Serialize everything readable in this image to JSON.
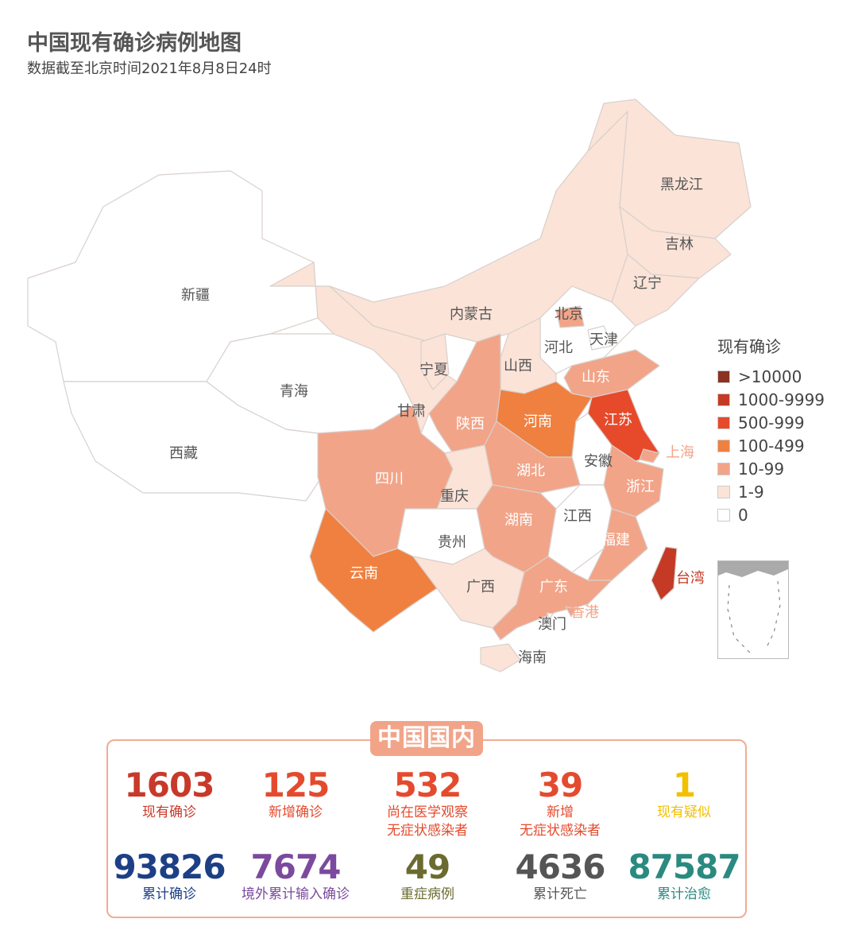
{
  "header": {
    "title": "中国现有确诊病例地图",
    "subtitle": "数据截至北京时间2021年8月8日24时"
  },
  "legend": {
    "title": "现有确诊",
    "levels": [
      {
        "label": ">10000",
        "color": "#8b3222"
      },
      {
        "label": "1000-9999",
        "color": "#c43a25"
      },
      {
        "label": "500-999",
        "color": "#e64a2b"
      },
      {
        "label": "100-499",
        "color": "#f08040"
      },
      {
        "label": "10-99",
        "color": "#f2a488"
      },
      {
        "label": "1-9",
        "color": "#fbe3d8"
      },
      {
        "label": "0",
        "color": "#ffffff"
      }
    ]
  },
  "provinces": [
    {
      "name": "新疆",
      "level": "0"
    },
    {
      "name": "西藏",
      "level": "0"
    },
    {
      "name": "青海",
      "level": "0"
    },
    {
      "name": "甘肃",
      "level": "1-9"
    },
    {
      "name": "内蒙古",
      "level": "1-9"
    },
    {
      "name": "黑龙江",
      "level": "1-9"
    },
    {
      "name": "吉林",
      "level": "1-9"
    },
    {
      "name": "辽宁",
      "level": "1-9"
    },
    {
      "name": "河北",
      "level": "0"
    },
    {
      "name": "北京",
      "level": "10-99"
    },
    {
      "name": "天津",
      "level": "0"
    },
    {
      "name": "山西",
      "level": "1-9"
    },
    {
      "name": "山东",
      "level": "10-99"
    },
    {
      "name": "宁夏",
      "level": "1-9"
    },
    {
      "name": "陕西",
      "level": "10-99"
    },
    {
      "name": "河南",
      "level": "100-499"
    },
    {
      "name": "江苏",
      "level": "500-999"
    },
    {
      "name": "上海",
      "level": "10-99"
    },
    {
      "name": "安徽",
      "level": "0"
    },
    {
      "name": "湖北",
      "level": "10-99"
    },
    {
      "name": "四川",
      "level": "10-99"
    },
    {
      "name": "重庆",
      "level": "1-9"
    },
    {
      "name": "浙江",
      "level": "10-99"
    },
    {
      "name": "贵州",
      "level": "0"
    },
    {
      "name": "湖南",
      "level": "10-99"
    },
    {
      "name": "江西",
      "level": "0"
    },
    {
      "name": "福建",
      "level": "10-99"
    },
    {
      "name": "云南",
      "level": "100-499"
    },
    {
      "name": "广西",
      "level": "1-9"
    },
    {
      "name": "广东",
      "level": "10-99"
    },
    {
      "name": "香港",
      "level": "10-99"
    },
    {
      "name": "澳门",
      "level": "0"
    },
    {
      "name": "海南",
      "level": "1-9"
    },
    {
      "name": "台湾",
      "level": "1000-9999"
    }
  ],
  "summary": {
    "badge": "中国国内",
    "stats": [
      {
        "value": "1603",
        "label": "现有确诊",
        "color": "#c8392a"
      },
      {
        "value": "125",
        "label": "新增确诊",
        "color": "#e44b2e"
      },
      {
        "value": "532",
        "label": "尚在医学观察\n无症状感染者",
        "color": "#e44b2e"
      },
      {
        "value": "39",
        "label": "新增\n无症状感染者",
        "color": "#e44b2e"
      },
      {
        "value": "1",
        "label": "现有疑似",
        "color": "#f2c000"
      },
      {
        "value": "93826",
        "label": "累计确诊",
        "color": "#1d3f85"
      },
      {
        "value": "7674",
        "label": "境外累计输入确诊",
        "color": "#7b4a9e"
      },
      {
        "value": "49",
        "label": "重症病例",
        "color": "#6b6b30"
      },
      {
        "value": "4636",
        "label": "累计死亡",
        "color": "#555555"
      },
      {
        "value": "87587",
        "label": "累计治愈",
        "color": "#2a8a80"
      }
    ]
  }
}
